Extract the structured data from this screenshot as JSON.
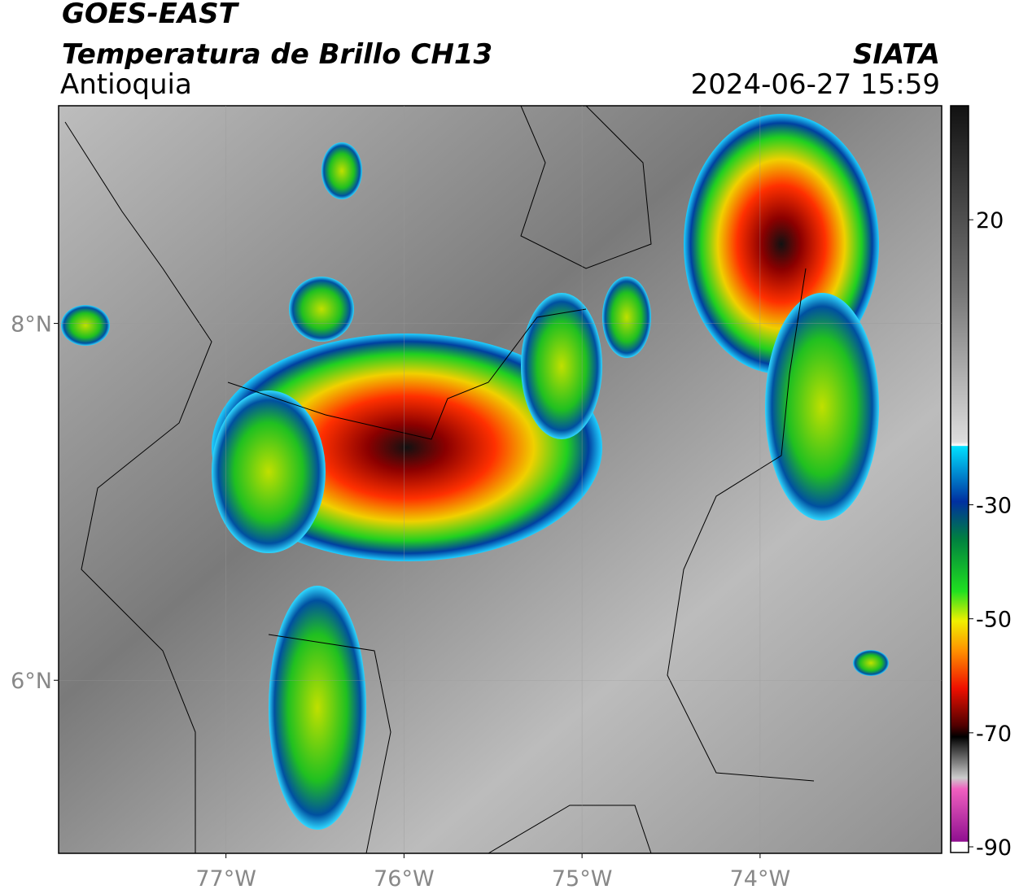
{
  "header": {
    "title": "GOES-EAST",
    "subtitle": "Temperatura de Brillo CH13",
    "region": "Antioquia",
    "source": "SIATA",
    "datetime": "2024-06-27 15:59"
  },
  "map": {
    "xlim": [
      -77.94,
      -72.98
    ],
    "ylim": [
      5.03,
      9.22
    ],
    "xticks": [
      {
        "value": -77,
        "label": "77°W"
      },
      {
        "value": -76,
        "label": "76°W"
      },
      {
        "value": -75,
        "label": "75°W"
      },
      {
        "value": -74,
        "label": "74°W"
      }
    ],
    "yticks": [
      {
        "value": 8,
        "label": "8°N"
      },
      {
        "value": 6,
        "label": "6°N"
      }
    ],
    "grid": true
  },
  "colorbar": {
    "lim": [
      -91,
      40
    ],
    "ticks": [
      20,
      -30,
      -50,
      -70,
      -90
    ]
  }
}
